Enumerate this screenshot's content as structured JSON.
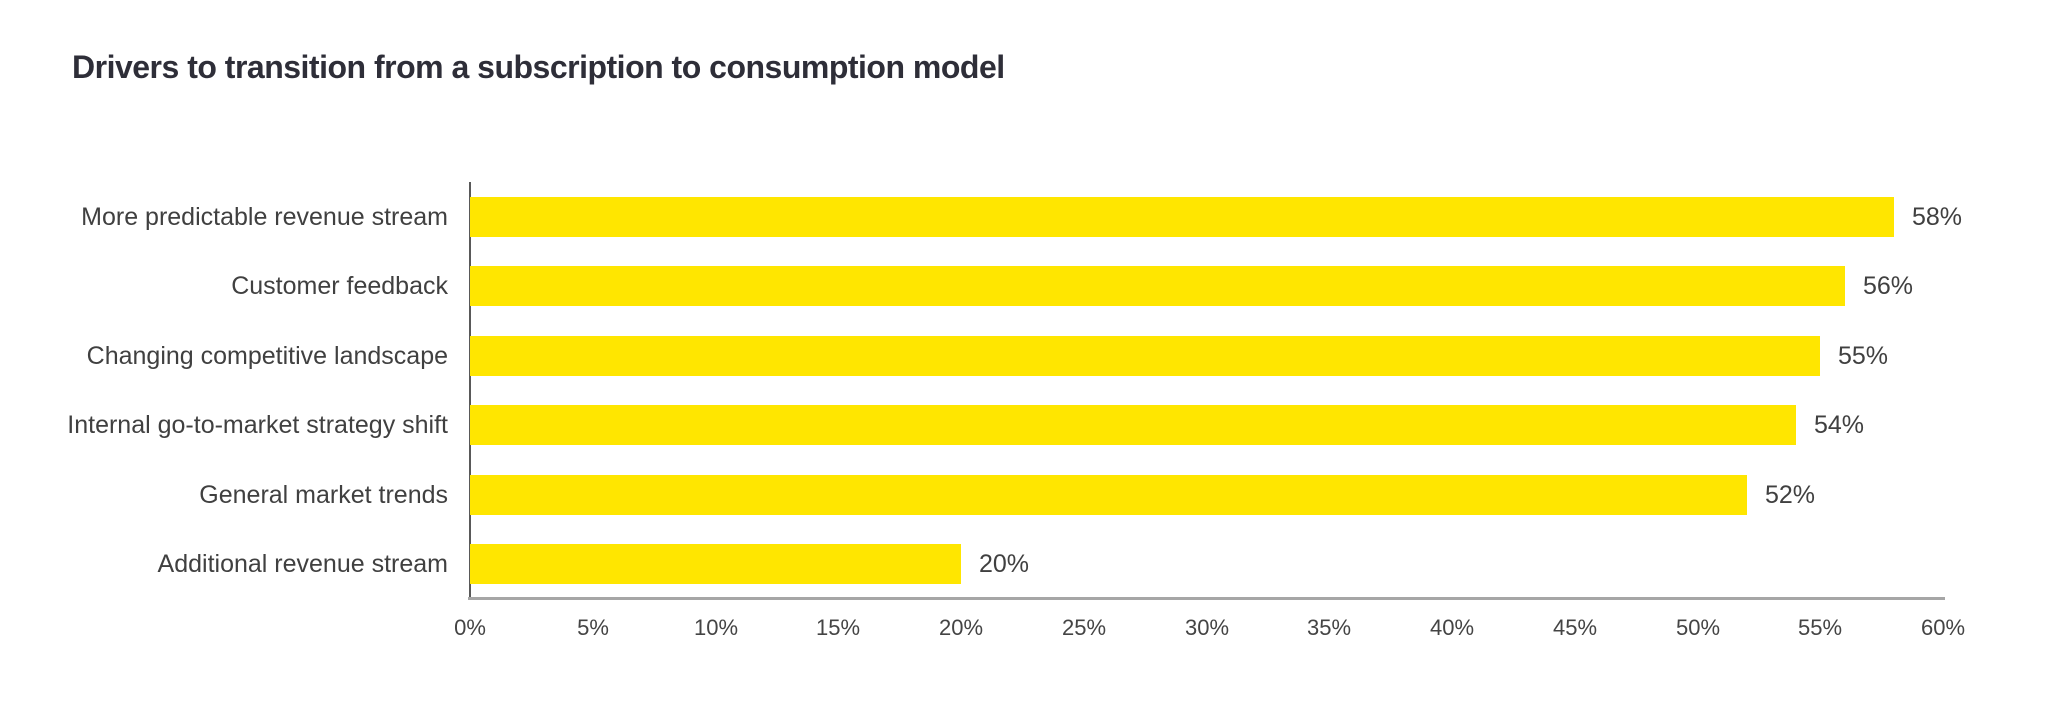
{
  "page": {
    "title": "Drivers to transition from a subscription to consumption model"
  },
  "colors": {
    "bar": "#FFE600",
    "title_text": "#2E2E38",
    "label_text": "#404040",
    "tick_text": "#444444",
    "y_axis_line": "#595959",
    "x_axis_line": "#A6A6A6",
    "background": "#FFFFFF"
  },
  "chart_data": {
    "type": "bar",
    "orientation": "horizontal",
    "title": "Drivers to transition from a subscription to consumption model",
    "categories": [
      "More predictable revenue stream",
      "Customer feedback",
      "Changing competitive landscape",
      "Internal go-to-market strategy shift",
      "General market trends",
      "Additional revenue stream"
    ],
    "values": [
      58,
      56,
      55,
      54,
      52,
      20
    ],
    "data_labels": [
      "58%",
      "56%",
      "55%",
      "54%",
      "52%",
      "20%"
    ],
    "unit": "%",
    "xlabel": "",
    "ylabel": "",
    "xlim": [
      0,
      60
    ],
    "x_tick_step": 5,
    "x_tick_labels": [
      "0%",
      "5%",
      "10%",
      "15%",
      "20%",
      "25%",
      "30%",
      "35%",
      "40%",
      "45%",
      "50%",
      "55%",
      "60%"
    ],
    "grid": false,
    "legend": null,
    "value_labels_position": "right-of-bar"
  }
}
